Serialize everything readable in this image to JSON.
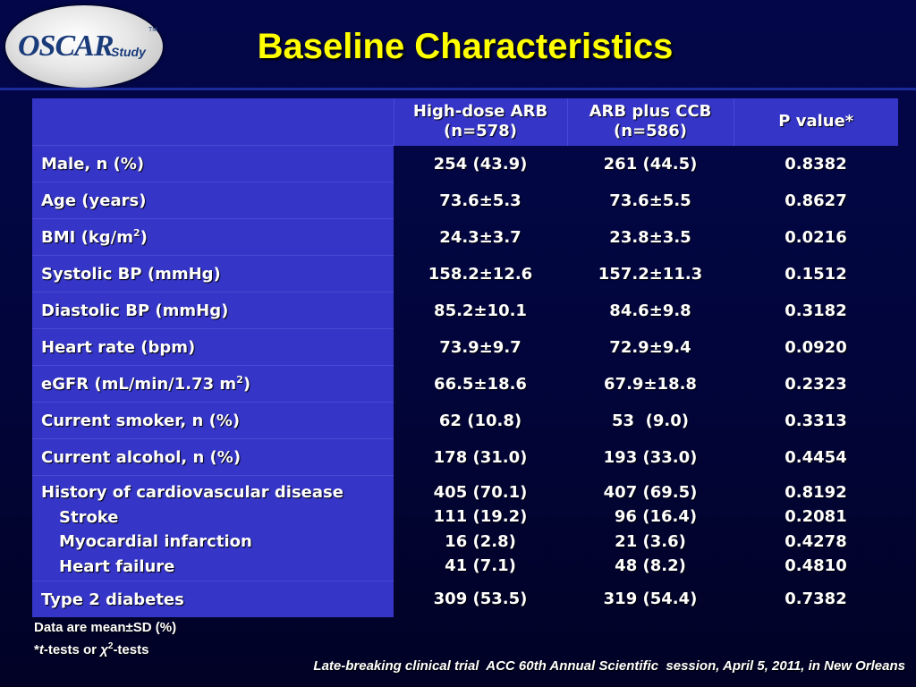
{
  "logo": {
    "main": "OSCAR",
    "sub": "Study",
    "tm": "TM"
  },
  "title": "Baseline Characteristics",
  "table": {
    "headers": [
      "",
      {
        "line1": "High-dose ARB",
        "line2": "(n=578)"
      },
      {
        "line1": "ARB plus CCB",
        "line2": "(n=586)"
      },
      {
        "line1": "P value*",
        "line2": ""
      }
    ],
    "rows": [
      {
        "label": "Male, n (%)",
        "a": "254 (43.9)",
        "b": "261 (44.5)",
        "p": "0.8382"
      },
      {
        "label": "Age (years)",
        "a": "73.6±5.3",
        "b": "73.6±5.5",
        "p": "0.8627"
      },
      {
        "label_pre": "BMI (kg/m",
        "label_sup": "2",
        "label_post": ")",
        "a": "24.3±3.7",
        "b": "23.8±3.5",
        "p": "0.0216"
      },
      {
        "label": "Systolic BP (mmHg)",
        "a": "158.2±12.6",
        "b": "157.2±11.3",
        "p": "0.1512"
      },
      {
        "label": "Diastolic BP (mmHg)",
        "a": "85.2±10.1",
        "b": "84.6±9.8",
        "p": "0.3182"
      },
      {
        "label": "Heart rate (bpm)",
        "a": "73.9±9.7",
        "b": "72.9±9.4",
        "p": "0.0920"
      },
      {
        "label_pre": "eGFR (mL/min/1.73 m",
        "label_sup": "2",
        "label_post": ")",
        "a": "66.5±18.6",
        "b": "67.9±18.8",
        "p": "0.2323"
      },
      {
        "label": "Current smoker, n (%)",
        "a": "62 (10.8)",
        "b": "53  (9.0)",
        "p": "0.3313"
      },
      {
        "label": "Current alcohol, n (%)",
        "a": "178 (31.0)",
        "b": "193 (33.0)",
        "p": "0.4454"
      }
    ],
    "cvd": {
      "label": "History of cardiovascular disease",
      "a": "405 (70.1)",
      "b": "407 (69.5)",
      "p": "0.8192",
      "sub": [
        {
          "label": "Stroke",
          "a": "111 (19.2)",
          "b": "96 (16.4)",
          "p": "0.2081"
        },
        {
          "label": "Myocardial infarction",
          "a": "16 (2.8)",
          "b": "21 (3.6)",
          "p": "0.4278"
        },
        {
          "label": "Heart failure",
          "a": "41 (7.1)",
          "b": "48 (8.2)",
          "p": "0.4810"
        }
      ]
    },
    "last": {
      "label": "Type 2 diabetes",
      "a": "309 (53.5)",
      "b": "319 (54.4)",
      "p": "0.7382"
    }
  },
  "footnote": {
    "line1": "Data are mean±SD (%)",
    "line2_star": "*",
    "line2_t": "t",
    "line2_mid": "-tests or ",
    "line2_chi": "χ",
    "line2_sup": "2",
    "line2_end": "-tests"
  },
  "source": "Late-breaking clinical trial  ACC 60th Annual Scientific  session, April 5, 2011, in New Orleans",
  "colors": {
    "title": "#ffff00",
    "table_blue": "#3535c8",
    "background": "#03074a"
  }
}
